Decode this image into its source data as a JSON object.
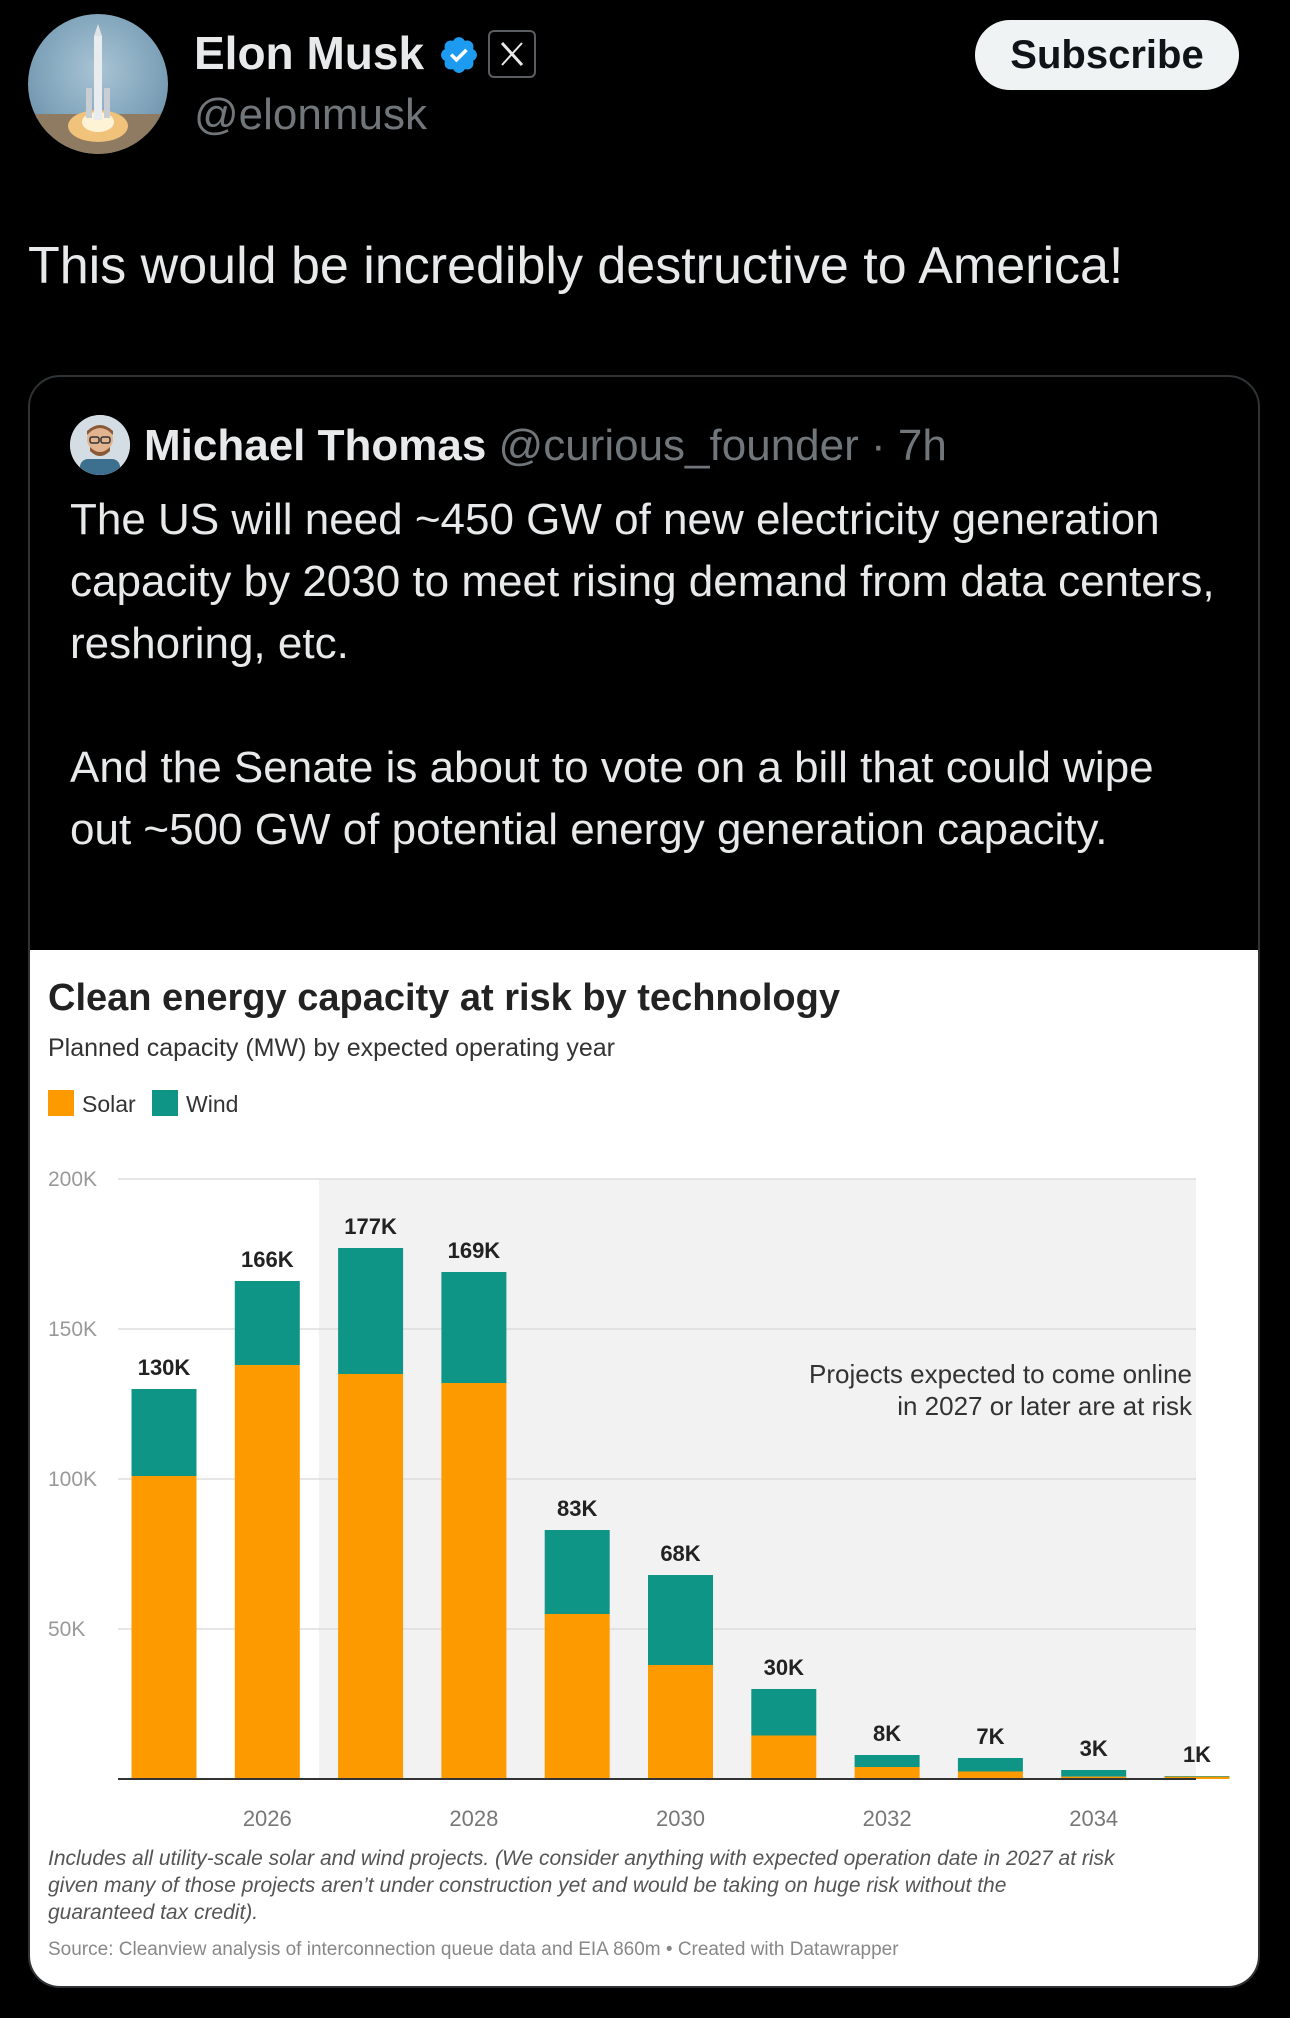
{
  "author": {
    "name": "Elon Musk",
    "handle": "@elonmusk",
    "verified_color": "#1d9bf0",
    "avatar_icon": "rocket-launch-avatar"
  },
  "header": {
    "subscribe_label": "Subscribe"
  },
  "tweet": {
    "text": "This would be incredibly destructive to America!"
  },
  "quote": {
    "name": "Michael Thomas",
    "handle": "@curious_founder",
    "time_separator": "·",
    "time": "7h",
    "paragraphs": [
      "The US will need ~450 GW of new electricity generation capacity by 2030 to meet rising demand from data centers, reshoring, etc.",
      "And the Senate is about to vote on a bill that could wipe out ~500 GW of potential energy generation capacity."
    ]
  },
  "chart_data": {
    "type": "bar",
    "stacked": true,
    "title": "Clean energy capacity at risk by technology",
    "subtitle": "Planned capacity (MW) by expected operating year",
    "x": [
      2025,
      2026,
      2027,
      2028,
      2029,
      2030,
      2031,
      2032,
      2033,
      2034,
      2035
    ],
    "x_tick_labels": [
      "2026",
      "2028",
      "2030",
      "2032",
      "2034"
    ],
    "series": [
      {
        "name": "Solar",
        "color": "#fd9a00",
        "values": [
          101000,
          138000,
          135000,
          132000,
          55000,
          38000,
          14500,
          4000,
          2500,
          800,
          800
        ]
      },
      {
        "name": "Wind",
        "color": "#0e9585",
        "values": [
          29000,
          28000,
          42000,
          37000,
          28000,
          30000,
          15500,
          4000,
          4500,
          2200,
          200
        ]
      }
    ],
    "totals_labels": [
      "130K",
      "166K",
      "177K",
      "169K",
      "83K",
      "68K",
      "30K",
      "8K",
      "7K",
      "3K",
      "1K"
    ],
    "y_ticks": [
      {
        "value": 50000,
        "label": "50K"
      },
      {
        "value": 100000,
        "label": "100K"
      },
      {
        "value": 150000,
        "label": "150K"
      },
      {
        "value": 200000,
        "label": "200K"
      }
    ],
    "ylim": [
      0,
      200000
    ],
    "grid": true,
    "legend": "top-left",
    "shaded_from_year": 2027,
    "annotation": [
      "Projects expected to come online",
      "in 2027 or later are at risk"
    ],
    "notes": [
      "Includes all utility-scale solar and wind projects. (We consider anything with expected operation date in 2027 at risk",
      "given many of those projects aren’t under construction yet and would be taking on huge risk without the",
      "guaranteed tax credit)."
    ],
    "source": "Source: Cleanview analysis of interconnection queue data and EIA 860m • Created with Datawrapper"
  }
}
